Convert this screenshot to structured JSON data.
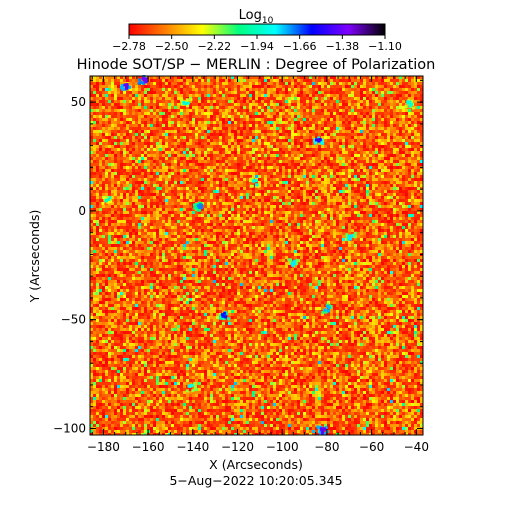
{
  "colorbar": {
    "label_main": "Log",
    "label_sub": "10",
    "tick_labels": [
      "−2.78",
      "−2.50",
      "−2.22",
      "−1.94",
      "−1.66",
      "−1.38",
      "−1.10"
    ]
  },
  "chart_data": {
    "type": "heatmap",
    "title": "Hinode SOT/SP − MERLIN : Degree of Polarization",
    "xlabel": "X (Arcseconds)",
    "ylabel": "Y (Arcseconds)",
    "xlim": [
      -186,
      -37
    ],
    "ylim": [
      -103,
      62
    ],
    "xticks": [
      -180,
      -160,
      -140,
      -120,
      -100,
      -80,
      -60,
      -40
    ],
    "xtick_labels": [
      "−180",
      "−160",
      "−140",
      "−120",
      "−100",
      "−80",
      "−60",
      "−40"
    ],
    "yticks": [
      -100,
      -50,
      0,
      50
    ],
    "ytick_labels": [
      "−100",
      "−50",
      "0",
      "50"
    ],
    "color_scale": "log10",
    "color_range": [
      -2.78,
      -1.1
    ],
    "colormap": [
      "#ff0000",
      "#ff8000",
      "#ffff00",
      "#00ff80",
      "#00ffff",
      "#0000ff",
      "#8000ff",
      "#000000"
    ],
    "dominant_range": [
      -2.78,
      -2.35
    ],
    "blobs": [
      {
        "x": -170,
        "y": 57,
        "level": -1.4
      },
      {
        "x": -162,
        "y": 60,
        "level": -1.35
      },
      {
        "x": -84,
        "y": 32,
        "level": -1.5
      },
      {
        "x": -82,
        "y": -101,
        "level": -1.4
      },
      {
        "x": -137,
        "y": 2,
        "level": -1.7
      },
      {
        "x": -95,
        "y": -24,
        "level": -1.8
      },
      {
        "x": -126,
        "y": -48,
        "level": -1.6
      },
      {
        "x": -143,
        "y": 50,
        "level": -1.9
      },
      {
        "x": -80,
        "y": -45,
        "level": -1.75
      },
      {
        "x": -112,
        "y": 13,
        "level": -1.9
      },
      {
        "x": -69,
        "y": -12,
        "level": -1.8
      },
      {
        "x": -141,
        "y": -81,
        "level": -1.85
      },
      {
        "x": -43,
        "y": 49,
        "level": -1.9
      },
      {
        "x": -178,
        "y": 5,
        "level": -1.95
      }
    ]
  },
  "timestamp": "5−Aug−2022 10:20:05.345"
}
